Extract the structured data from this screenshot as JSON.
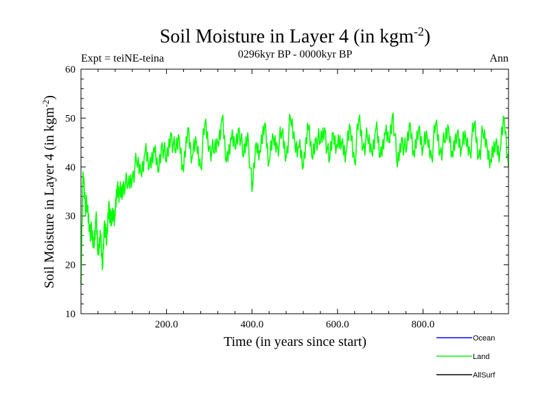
{
  "chart_data": {
    "type": "line",
    "title": "Soil Moisture in Layer 4 (in kgm",
    "title_sup": "-2",
    "title_close": ")",
    "subtitle": "0296kyr BP - 0000kyr BP",
    "left_label": "Expt = teiNE-teina",
    "right_label": "Ann",
    "xlabel": "Time (in years since start)",
    "ylabel": "Soil Moisture in Layer 4 (in kgm",
    "ylabel_sup": "-2",
    "ylabel_close": ")",
    "xlim": [
      0,
      1000
    ],
    "ylim": [
      10,
      60
    ],
    "x_ticks": [
      200,
      400,
      600,
      800
    ],
    "x_tick_labels": [
      "200.0",
      "400.0",
      "600.0",
      "800.0"
    ],
    "y_ticks": [
      10,
      20,
      30,
      40,
      50,
      60
    ],
    "y_tick_labels": [
      "10",
      "20",
      "30",
      "40",
      "50",
      "60"
    ],
    "series": [
      {
        "name": "Ocean",
        "color": "#0000ff",
        "x": [],
        "values": []
      },
      {
        "name": "Land",
        "color": "#00ff00",
        "x": [
          0,
          5,
          10,
          15,
          20,
          25,
          30,
          35,
          40,
          45,
          50,
          55,
          60,
          65,
          70,
          75,
          80,
          85,
          90,
          95,
          100,
          110,
          120,
          130,
          140,
          150,
          160,
          170,
          180,
          190,
          200,
          210,
          220,
          230,
          240,
          250,
          260,
          270,
          280,
          290,
          300,
          310,
          320,
          330,
          340,
          350,
          360,
          370,
          380,
          390,
          400,
          410,
          420,
          430,
          440,
          450,
          460,
          470,
          480,
          490,
          500,
          510,
          520,
          530,
          540,
          550,
          560,
          570,
          580,
          590,
          600,
          610,
          620,
          630,
          640,
          650,
          660,
          670,
          680,
          690,
          700,
          710,
          720,
          730,
          740,
          750,
          760,
          770,
          780,
          790,
          800,
          810,
          820,
          830,
          840,
          850,
          860,
          870,
          880,
          890,
          900,
          910,
          920,
          930,
          940,
          950,
          960,
          970,
          980,
          990,
          1000
        ],
        "values": [
          16,
          39,
          33,
          31,
          28,
          26,
          24,
          30,
          22,
          27,
          19,
          29,
          24,
          33,
          28,
          31,
          30,
          36,
          35,
          34,
          37,
          36,
          38,
          41,
          39,
          43,
          40,
          44,
          39,
          45,
          41,
          47,
          43,
          46,
          39,
          48,
          42,
          45,
          40,
          49,
          44,
          43,
          45,
          50,
          41,
          46,
          44,
          48,
          42,
          47,
          35,
          45,
          43,
          49,
          41,
          46,
          44,
          47,
          42,
          50,
          45,
          44,
          40,
          49,
          42,
          46,
          45,
          48,
          41,
          47,
          44,
          45,
          43,
          48,
          41,
          50,
          44,
          46,
          43,
          48,
          42,
          47,
          45,
          51,
          40,
          46,
          43,
          49,
          42,
          48,
          44,
          46,
          42,
          49,
          43,
          45,
          48,
          42,
          47,
          44,
          46,
          43,
          49,
          42,
          47,
          44,
          41,
          45,
          43,
          50,
          40
        ]
      },
      {
        "name": "AllSurf",
        "color": "#000000",
        "x": [],
        "values": []
      }
    ],
    "legend_position": "bottom-right",
    "grid": false
  }
}
